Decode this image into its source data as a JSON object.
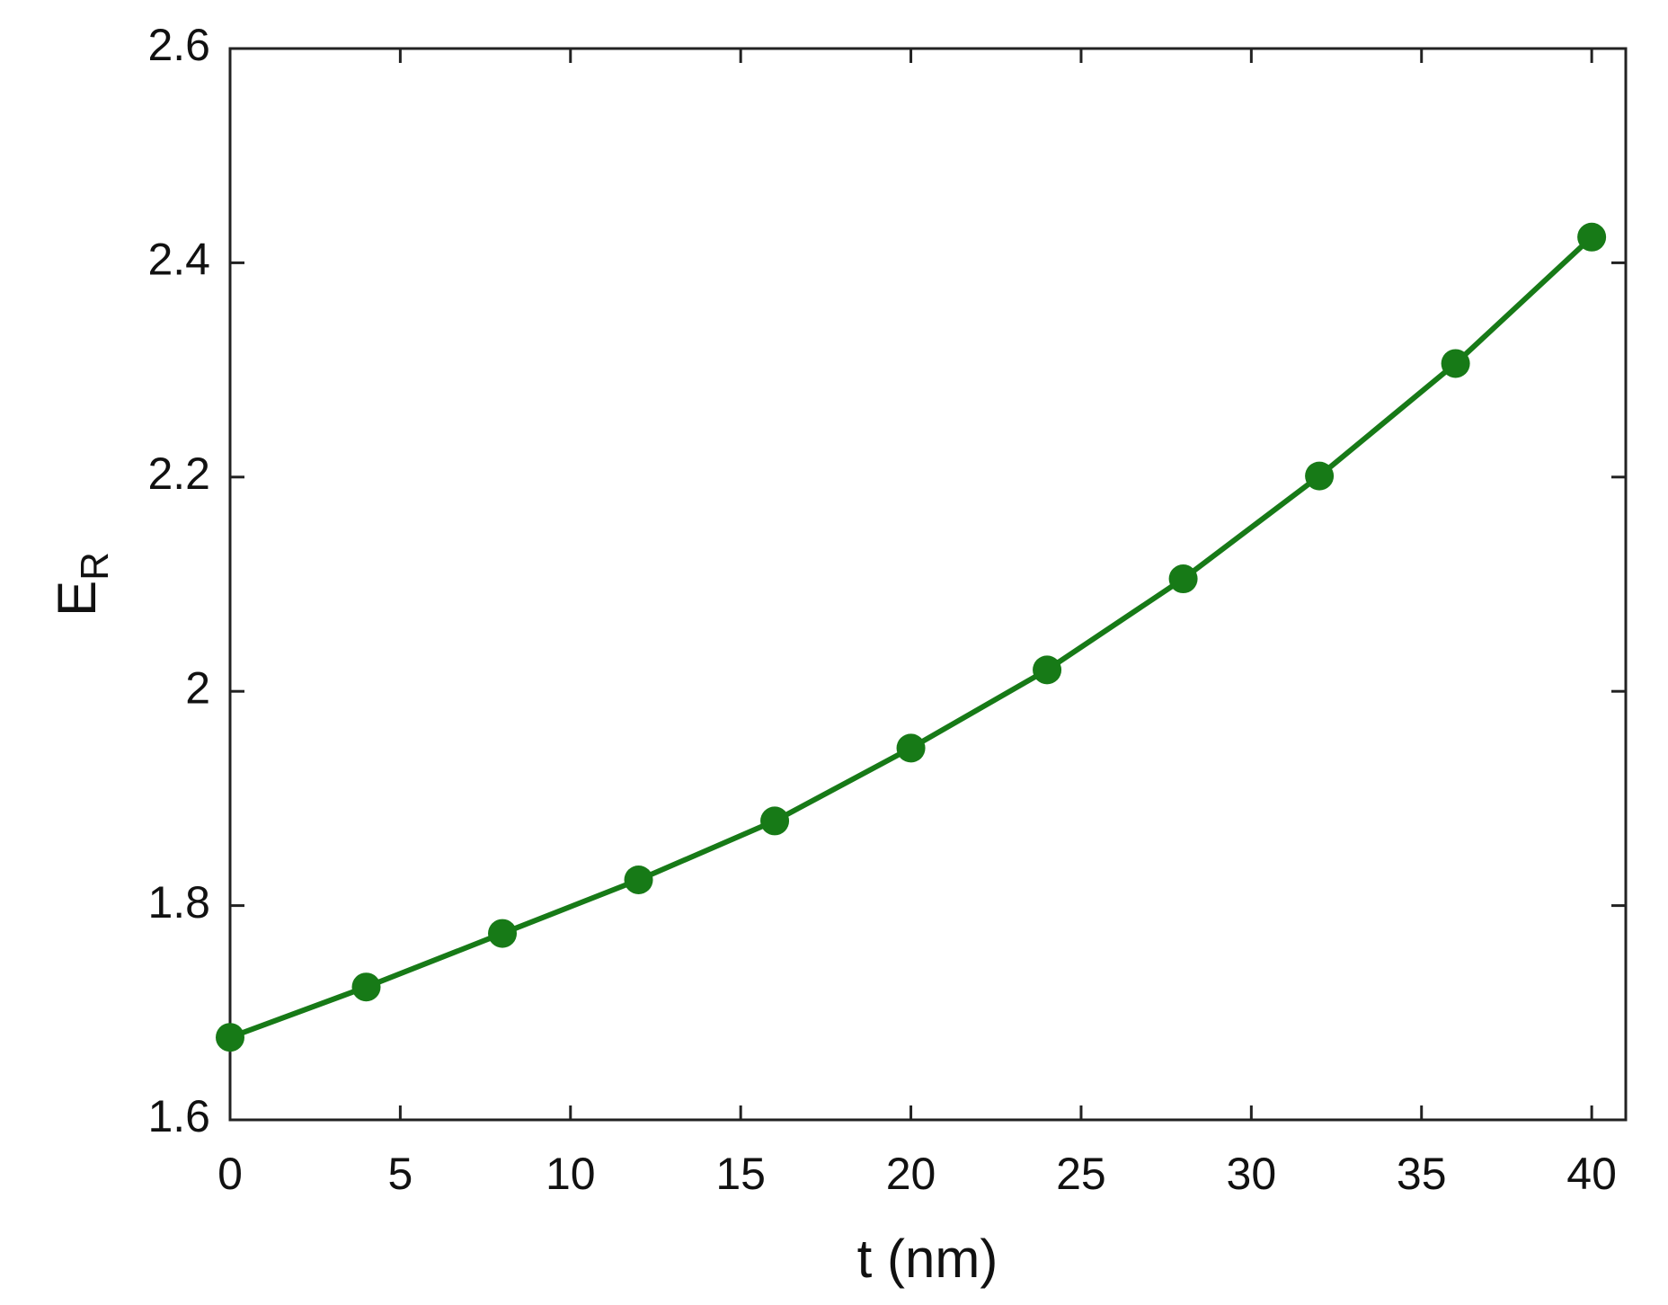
{
  "chart_data": {
    "type": "line",
    "x_label": "t (nm)",
    "y_label": "E",
    "y_label_subscript": "R",
    "x": [
      0,
      4,
      8,
      12,
      16,
      20,
      24,
      28,
      32,
      36,
      40
    ],
    "series": [
      {
        "color": "#177a17",
        "values": [
          1.677,
          1.724,
          1.774,
          1.824,
          1.879,
          1.947,
          2.02,
          2.105,
          2.201,
          2.306,
          2.424
        ]
      }
    ],
    "xlim": [
      0,
      41
    ],
    "ylim": [
      1.6,
      2.6
    ],
    "xticks": [
      0,
      5,
      10,
      15,
      20,
      25,
      30,
      35,
      40
    ],
    "yticks": [
      1.6,
      1.8,
      2,
      2.2,
      2.4,
      2.6
    ],
    "markers": true,
    "grid": false
  }
}
